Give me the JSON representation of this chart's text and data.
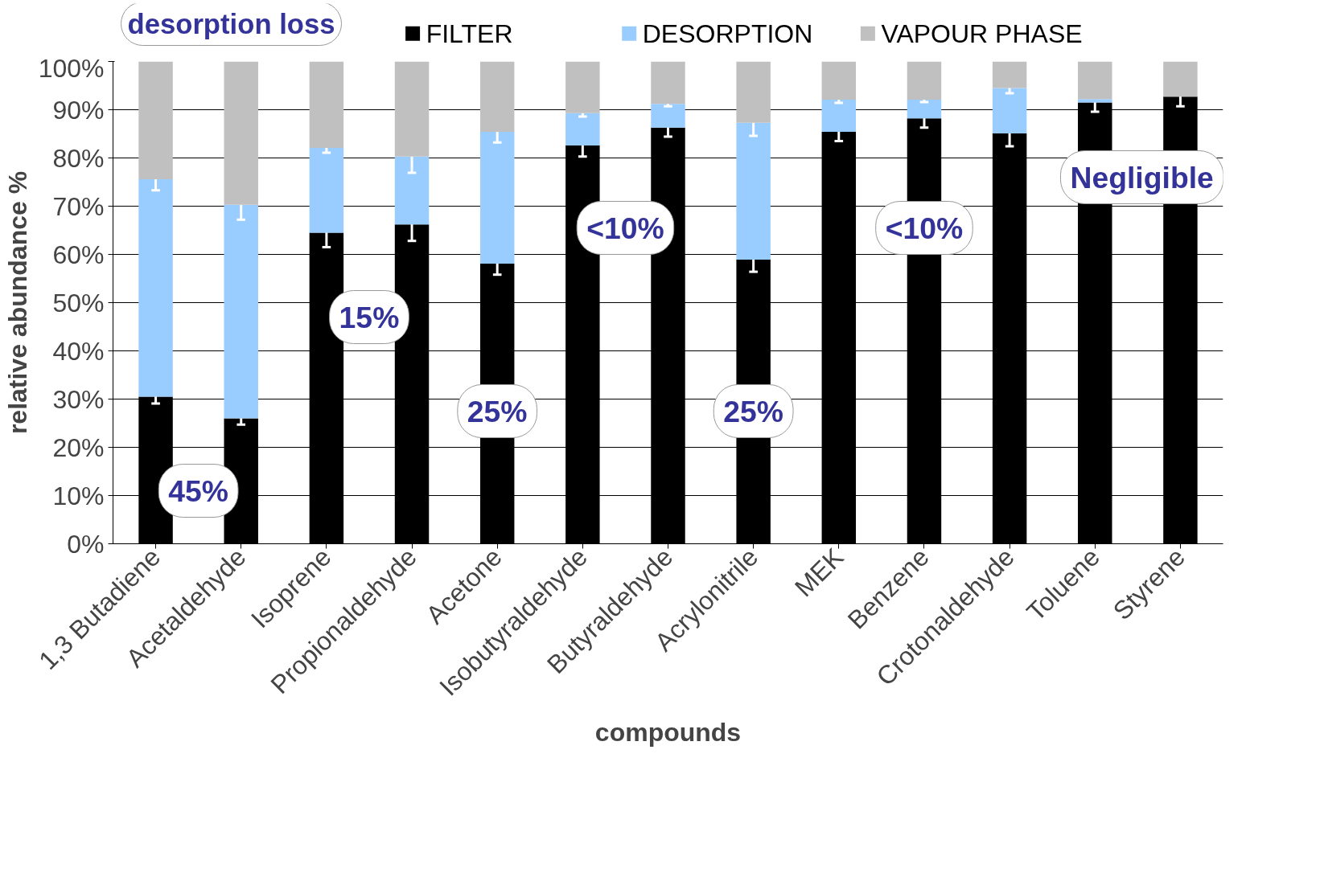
{
  "chart_data": {
    "type": "bar",
    "stacked": true,
    "xlabel": "compounds",
    "ylabel": "relative abundance %",
    "categories": [
      "1,3 Butadiene",
      "Acetaldehyde",
      "Isoprene",
      "Propionaldehyde",
      "Acetone",
      "Isobutyraldehyde",
      "Butyraldehyde",
      "Acrylonitrile",
      "MEK",
      "Benzene",
      "Crotonaldehyde",
      "Toluene",
      "Styrene"
    ],
    "series": [
      {
        "name": "FILTER",
        "color": "#000000",
        "values": [
          30.5,
          26,
          64.5,
          66.2,
          58.1,
          82.6,
          86.3,
          58.9,
          85.4,
          88.2,
          85.1,
          91.5,
          92.7
        ],
        "errors": [
          1.4,
          1.3,
          3,
          3.4,
          2.3,
          2.3,
          1.9,
          2.5,
          1.9,
          1.9,
          2.7,
          1.9,
          2
        ]
      },
      {
        "name": "DESORPTION",
        "color": "#99ccff",
        "values": [
          45.1,
          44.3,
          17.6,
          14.1,
          27.3,
          6.7,
          4.9,
          28.4,
          6.7,
          3.9,
          9.4,
          0.7,
          0
        ],
        "errors": [
          2.3,
          3.1,
          1,
          3.4,
          2.2,
          0.7,
          0.5,
          2.7,
          0.7,
          0.5,
          1.1,
          null,
          null
        ]
      },
      {
        "name": "VAPOUR PHASE",
        "color": "#c0c0c0",
        "values": [
          24.4,
          29.7,
          17.9,
          19.7,
          14.6,
          10.7,
          8.8,
          12.7,
          7.9,
          7.9,
          5.5,
          7.8,
          7.3
        ]
      }
    ],
    "ylim": [
      0,
      100
    ],
    "yticks": [
      {
        "value": 0,
        "label": "0%"
      },
      {
        "value": 10,
        "label": "10%"
      },
      {
        "value": 20,
        "label": "20%"
      },
      {
        "value": 30,
        "label": "30%"
      },
      {
        "value": 40,
        "label": "40%"
      },
      {
        "value": 50,
        "label": "50%"
      },
      {
        "value": 60,
        "label": "60%"
      },
      {
        "value": 70,
        "label": "70%"
      },
      {
        "value": 80,
        "label": "80%"
      },
      {
        "value": 90,
        "label": "90%"
      },
      {
        "value": 100,
        "label": "100%"
      }
    ],
    "grid": "y",
    "legend": "top",
    "annotations": [
      "desorption loss",
      "45%",
      "15%",
      "25%",
      "<10%",
      "25%",
      "<10%",
      "Negligible"
    ]
  }
}
